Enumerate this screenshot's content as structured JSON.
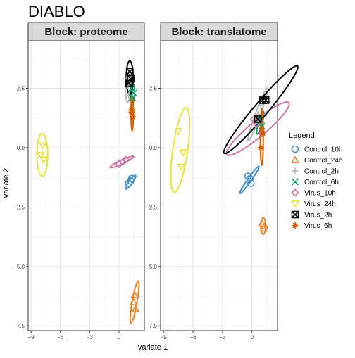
{
  "chart_data": {
    "type": "scatter",
    "title": "DIABLO",
    "xlabel": "variate 1",
    "ylabel": "variate 2",
    "xlim": [
      -9.3,
      2.6
    ],
    "ylim": [
      -7.7,
      4.5
    ],
    "x_ticks": [
      -9,
      -6,
      -3,
      0
    ],
    "y_ticks": [
      2.5,
      0.0,
      -2.5,
      -5.0,
      -7.5
    ],
    "x_tick_labels": [
      "−9",
      "−6",
      "−3",
      "0"
    ],
    "y_tick_labels": [
      "2.5",
      "0.0",
      "−2.5",
      "−5.0",
      "−7.5"
    ],
    "grid": true,
    "legend_position": "right",
    "legend": {
      "title": "Legend",
      "entries": [
        "Control_10h",
        "Control_24h",
        "Control_2h",
        "Control_6h",
        "Virus_10h",
        "Virus_24h",
        "Virus_2h",
        "Virus_6h"
      ]
    },
    "groups": [
      {
        "name": "Control_10h",
        "color": "#4a90c8",
        "shape": "circle"
      },
      {
        "name": "Control_24h",
        "color": "#e8832a",
        "shape": "triangle-up"
      },
      {
        "name": "Control_2h",
        "color": "#b8b8b8",
        "shape": "plus"
      },
      {
        "name": "Control_6h",
        "color": "#1a9a6c",
        "shape": "x"
      },
      {
        "name": "Virus_10h",
        "color": "#cc77a6",
        "shape": "diamond"
      },
      {
        "name": "Virus_24h",
        "color": "#ece23a",
        "shape": "triangle-down"
      },
      {
        "name": "Virus_2h",
        "color": "#000000",
        "shape": "boxed-x"
      },
      {
        "name": "Virus_6h",
        "color": "#d55e00",
        "shape": "asterisk"
      }
    ],
    "panels": [
      {
        "title": "Block: proteome",
        "points": [
          {
            "group": "Control_10h",
            "x": 1.0,
            "y": -1.5
          },
          {
            "group": "Control_10h",
            "x": 1.2,
            "y": -1.4
          },
          {
            "group": "Control_10h",
            "x": 1.3,
            "y": -1.3
          },
          {
            "group": "Control_24h",
            "x": 1.6,
            "y": -6.2
          },
          {
            "group": "Control_24h",
            "x": 1.5,
            "y": -6.5
          },
          {
            "group": "Control_24h",
            "x": 1.7,
            "y": -6.8
          },
          {
            "group": "Control_2h",
            "x": 0.8,
            "y": 2.9
          },
          {
            "group": "Control_2h",
            "x": 0.9,
            "y": 2.6
          },
          {
            "group": "Control_2h",
            "x": 1.0,
            "y": 2.2
          },
          {
            "group": "Control_6h",
            "x": 1.3,
            "y": 2.5
          },
          {
            "group": "Control_6h",
            "x": 1.4,
            "y": 2.1
          },
          {
            "group": "Control_6h",
            "x": 1.5,
            "y": 2.3
          },
          {
            "group": "Virus_10h",
            "x": 0.0,
            "y": -0.7
          },
          {
            "group": "Virus_10h",
            "x": 0.4,
            "y": -0.6
          },
          {
            "group": "Virus_10h",
            "x": 0.7,
            "y": -0.5
          },
          {
            "group": "Virus_24h",
            "x": -7.8,
            "y": 0.1
          },
          {
            "group": "Virus_24h",
            "x": -8.0,
            "y": -0.3
          },
          {
            "group": "Virus_24h",
            "x": -7.7,
            "y": -0.5
          },
          {
            "group": "Virus_2h",
            "x": 1.1,
            "y": 3.2
          },
          {
            "group": "Virus_2h",
            "x": 1.2,
            "y": 2.9
          },
          {
            "group": "Virus_2h",
            "x": 1.0,
            "y": 2.7
          },
          {
            "group": "Virus_6h",
            "x": 1.3,
            "y": 1.6
          },
          {
            "group": "Virus_6h",
            "x": 1.4,
            "y": 1.3
          },
          {
            "group": "Virus_6h",
            "x": 1.3,
            "y": 1.5
          }
        ],
        "ellipses": [
          {
            "group": "Control_10h",
            "cx": 1.2,
            "cy": -1.45,
            "rx": 0.2,
            "ry": 0.35,
            "angle": 35
          },
          {
            "group": "Control_24h",
            "cx": 1.6,
            "cy": -6.5,
            "rx": 0.25,
            "ry": 0.9,
            "angle": 10
          },
          {
            "group": "Control_2h",
            "cx": 0.9,
            "cy": 2.6,
            "rx": 0.25,
            "ry": 0.7,
            "angle": 0
          },
          {
            "group": "Control_6h",
            "cx": 1.4,
            "cy": 2.3,
            "rx": 0.2,
            "ry": 0.4,
            "angle": 0
          },
          {
            "group": "Virus_10h",
            "cx": 0.3,
            "cy": -0.6,
            "rx": 0.2,
            "ry": 0.55,
            "angle": 65
          },
          {
            "group": "Virus_24h",
            "cx": -7.85,
            "cy": -0.3,
            "rx": 0.55,
            "ry": 0.9,
            "angle": 0
          },
          {
            "group": "Virus_2h",
            "cx": 1.1,
            "cy": 2.95,
            "rx": 0.35,
            "ry": 0.7,
            "angle": 0
          },
          {
            "group": "Virus_6h",
            "cx": 1.35,
            "cy": 1.45,
            "rx": 0.12,
            "ry": 0.75,
            "angle": 0
          }
        ]
      },
      {
        "title": "Block: translatome",
        "points": [
          {
            "group": "Control_10h",
            "x": -0.4,
            "y": -1.2
          },
          {
            "group": "Control_10h",
            "x": -0.2,
            "y": -1.3
          },
          {
            "group": "Control_10h",
            "x": -0.1,
            "y": -1.5
          },
          {
            "group": "Control_24h",
            "x": 1.0,
            "y": -3.2
          },
          {
            "group": "Control_24h",
            "x": 1.2,
            "y": -3.4
          },
          {
            "group": "Control_24h",
            "x": 1.3,
            "y": -3.3
          },
          {
            "group": "Control_2h",
            "x": 0.3,
            "y": 1.0
          },
          {
            "group": "Control_2h",
            "x": 0.6,
            "y": 1.4
          },
          {
            "group": "Control_2h",
            "x": 0.9,
            "y": 1.8
          },
          {
            "group": "Control_6h",
            "x": 0.8,
            "y": 1.2
          },
          {
            "group": "Control_6h",
            "x": 1.0,
            "y": 0.9
          },
          {
            "group": "Control_6h",
            "x": 0.7,
            "y": 1.0
          },
          {
            "group": "Virus_10h",
            "x": 0.2,
            "y": 1.2
          },
          {
            "group": "Virus_10h",
            "x": 1.0,
            "y": 0.6
          },
          {
            "group": "Virus_10h",
            "x": 0.5,
            "y": 1.0
          },
          {
            "group": "Virus_24h",
            "x": -7.5,
            "y": 0.7
          },
          {
            "group": "Virus_24h",
            "x": -7.0,
            "y": -0.2
          },
          {
            "group": "Virus_24h",
            "x": -7.2,
            "y": -0.8
          },
          {
            "group": "Virus_2h",
            "x": 0.6,
            "y": 1.2
          },
          {
            "group": "Virus_2h",
            "x": 1.1,
            "y": 2.0
          },
          {
            "group": "Virus_2h",
            "x": 1.4,
            "y": 2.0
          },
          {
            "group": "Virus_6h",
            "x": 1.1,
            "y": 0.6
          },
          {
            "group": "Virus_6h",
            "x": 0.9,
            "y": 0.0
          },
          {
            "group": "Virus_6h",
            "x": 1.0,
            "y": 0.8
          }
        ],
        "ellipses": [
          {
            "group": "Control_10h",
            "cx": -0.25,
            "cy": -1.35,
            "rx": 0.18,
            "ry": 0.7,
            "angle": 35
          },
          {
            "group": "Control_24h",
            "cx": 1.15,
            "cy": -3.3,
            "rx": 0.25,
            "ry": 0.35,
            "angle": 0
          },
          {
            "group": "Control_2h",
            "cx": 0.6,
            "cy": 1.4,
            "rx": 0.25,
            "ry": 1.2,
            "angle": 20
          },
          {
            "group": "Control_6h",
            "cx": 0.85,
            "cy": 1.05,
            "rx": 0.2,
            "ry": 0.5,
            "angle": 15
          },
          {
            "group": "Virus_10h",
            "cx": 0.6,
            "cy": 0.8,
            "rx": 0.8,
            "ry": 1.7,
            "angle": 50
          },
          {
            "group": "Virus_24h",
            "cx": -7.3,
            "cy": -0.1,
            "rx": 0.75,
            "ry": 1.8,
            "angle": 8
          },
          {
            "group": "Virus_2h",
            "cx": 0.9,
            "cy": 1.6,
            "rx": 0.7,
            "ry": 2.4,
            "angle": 40
          },
          {
            "group": "Virus_6h",
            "cx": 1.0,
            "cy": 0.45,
            "rx": 0.15,
            "ry": 1.2,
            "angle": 0
          }
        ]
      }
    ]
  }
}
